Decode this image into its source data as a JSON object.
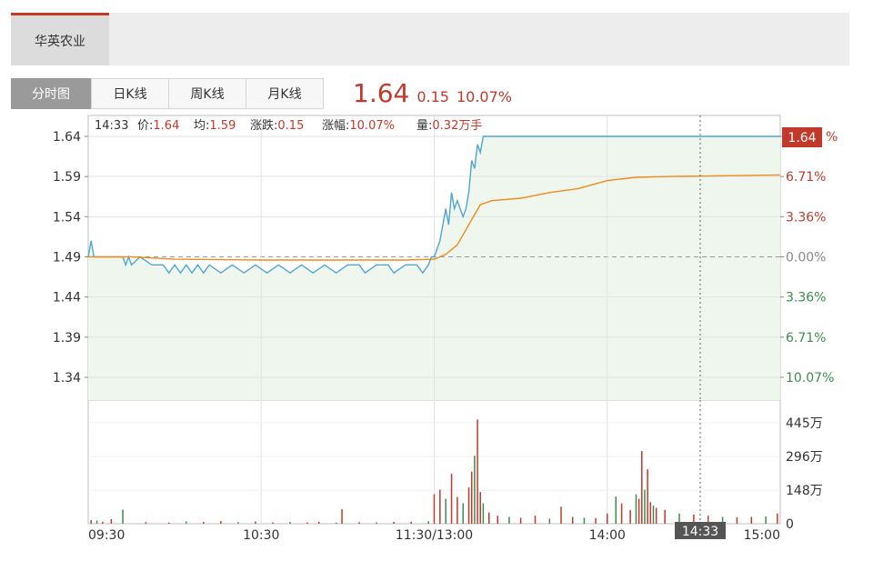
{
  "stock_tab": "华英农业",
  "period_tabs": [
    "分时图",
    "日K线",
    "周K线",
    "月K线"
  ],
  "quote": {
    "price": "1.64",
    "change": "0.15",
    "change_pct": "10.07%"
  },
  "info_bar": {
    "time": "14:33",
    "price_label": "价:",
    "price": "1.64",
    "avg_label": "均:",
    "avg": "1.59",
    "chg_label": "涨跌:",
    "chg": "0.15",
    "pct_label": "涨幅:",
    "pct": "10.07%",
    "vol_label": "量:",
    "vol": "0.32万手"
  },
  "cursor_time_label": "14:33",
  "current_price_badge": "1.64",
  "colors": {
    "up": "#c0392b",
    "down": "#3c8c4e",
    "price_line": "#4fa6d0",
    "avg_line": "#ef8c1a",
    "fill": "#eef6ee"
  },
  "chart_data": {
    "type": "line",
    "price_axis": {
      "ticks": [
        "1.64",
        "1.59",
        "1.54",
        "1.49",
        "1.44",
        "1.39",
        "1.34"
      ],
      "ylim": [
        1.34,
        1.64
      ],
      "prev_close": 1.49
    },
    "pct_axis": {
      "ticks": [
        "%",
        "6.71%",
        "3.36%",
        "0.00%",
        "3.36%",
        "6.71%",
        "10.07%"
      ]
    },
    "volume_axis": {
      "ticks": [
        "445万",
        "296万",
        "148万",
        "0"
      ],
      "ylim": [
        0,
        445
      ]
    },
    "x_axis": {
      "ticks": [
        "09:30",
        "10:30",
        "11:30/13:00",
        "14:00",
        "15:00"
      ]
    },
    "series": [
      {
        "name": "价",
        "points": [
          [
            0,
            1.49
          ],
          [
            1,
            1.51
          ],
          [
            2,
            1.49
          ],
          [
            6,
            1.49
          ],
          [
            12,
            1.49
          ],
          [
            13,
            1.48
          ],
          [
            14,
            1.49
          ],
          [
            15,
            1.48
          ],
          [
            18,
            1.49
          ],
          [
            22,
            1.48
          ],
          [
            26,
            1.48
          ],
          [
            28,
            1.47
          ],
          [
            30,
            1.48
          ],
          [
            32,
            1.47
          ],
          [
            34,
            1.48
          ],
          [
            36,
            1.47
          ],
          [
            38,
            1.48
          ],
          [
            40,
            1.47
          ],
          [
            42,
            1.48
          ],
          [
            46,
            1.47
          ],
          [
            50,
            1.48
          ],
          [
            54,
            1.47
          ],
          [
            58,
            1.48
          ],
          [
            62,
            1.47
          ],
          [
            66,
            1.48
          ],
          [
            70,
            1.47
          ],
          [
            74,
            1.48
          ],
          [
            78,
            1.47
          ],
          [
            82,
            1.48
          ],
          [
            86,
            1.47
          ],
          [
            90,
            1.48
          ],
          [
            94,
            1.48
          ],
          [
            96,
            1.47
          ],
          [
            100,
            1.48
          ],
          [
            104,
            1.48
          ],
          [
            106,
            1.47
          ],
          [
            110,
            1.48
          ],
          [
            114,
            1.48
          ],
          [
            116,
            1.47
          ],
          [
            118,
            1.48
          ],
          [
            119,
            1.49
          ],
          [
            120,
            1.49
          ],
          [
            122,
            1.51
          ],
          [
            124,
            1.55
          ],
          [
            125,
            1.53
          ],
          [
            126,
            1.57
          ],
          [
            127,
            1.55
          ],
          [
            128,
            1.56
          ],
          [
            129,
            1.55
          ],
          [
            130,
            1.54
          ],
          [
            131,
            1.55
          ],
          [
            132,
            1.57
          ],
          [
            133,
            1.61
          ],
          [
            134,
            1.6
          ],
          [
            135,
            1.63
          ],
          [
            136,
            1.62
          ],
          [
            137,
            1.64
          ],
          [
            139,
            1.64
          ],
          [
            160,
            1.64
          ],
          [
            200,
            1.64
          ],
          [
            240,
            1.64
          ]
        ]
      },
      {
        "name": "均",
        "points": [
          [
            0,
            1.49
          ],
          [
            15,
            1.49
          ],
          [
            30,
            1.487
          ],
          [
            60,
            1.486
          ],
          [
            90,
            1.486
          ],
          [
            110,
            1.486
          ],
          [
            120,
            1.487
          ],
          [
            124,
            1.493
          ],
          [
            128,
            1.505
          ],
          [
            132,
            1.53
          ],
          [
            136,
            1.555
          ],
          [
            140,
            1.56
          ],
          [
            150,
            1.563
          ],
          [
            160,
            1.57
          ],
          [
            170,
            1.575
          ],
          [
            180,
            1.585
          ],
          [
            190,
            1.589
          ],
          [
            200,
            1.59
          ],
          [
            220,
            1.591
          ],
          [
            240,
            1.592
          ]
        ]
      }
    ],
    "volume": [
      [
        1,
        16
      ],
      [
        3,
        14
      ],
      [
        5,
        9
      ],
      [
        8,
        20
      ],
      [
        12,
        62
      ],
      [
        20,
        7
      ],
      [
        28,
        5
      ],
      [
        34,
        10
      ],
      [
        40,
        8
      ],
      [
        46,
        12
      ],
      [
        52,
        7
      ],
      [
        58,
        10
      ],
      [
        64,
        6
      ],
      [
        70,
        8
      ],
      [
        76,
        6
      ],
      [
        80,
        8
      ],
      [
        86,
        5
      ],
      [
        88,
        64
      ],
      [
        94,
        7
      ],
      [
        100,
        6
      ],
      [
        106,
        8
      ],
      [
        112,
        9
      ],
      [
        118,
        11
      ],
      [
        120,
        130
      ],
      [
        122,
        150
      ],
      [
        124,
        110
      ],
      [
        126,
        220
      ],
      [
        128,
        118
      ],
      [
        130,
        90
      ],
      [
        132,
        160
      ],
      [
        133,
        230
      ],
      [
        134,
        300
      ],
      [
        135,
        460
      ],
      [
        136,
        140
      ],
      [
        137,
        90
      ],
      [
        139,
        50
      ],
      [
        142,
        35
      ],
      [
        146,
        30
      ],
      [
        150,
        26
      ],
      [
        155,
        35
      ],
      [
        160,
        22
      ],
      [
        164,
        75
      ],
      [
        168,
        30
      ],
      [
        172,
        26
      ],
      [
        176,
        25
      ],
      [
        180,
        45
      ],
      [
        183,
        120
      ],
      [
        185,
        90
      ],
      [
        188,
        60
      ],
      [
        190,
        130
      ],
      [
        191,
        110
      ],
      [
        192,
        320
      ],
      [
        193,
        150
      ],
      [
        194,
        240
      ],
      [
        195,
        95
      ],
      [
        196,
        80
      ],
      [
        197,
        70
      ],
      [
        200,
        60
      ],
      [
        205,
        45
      ],
      [
        210,
        40
      ],
      [
        215,
        35
      ],
      [
        220,
        30
      ],
      [
        225,
        28
      ],
      [
        230,
        30
      ],
      [
        235,
        32
      ],
      [
        239,
        45
      ]
    ]
  }
}
